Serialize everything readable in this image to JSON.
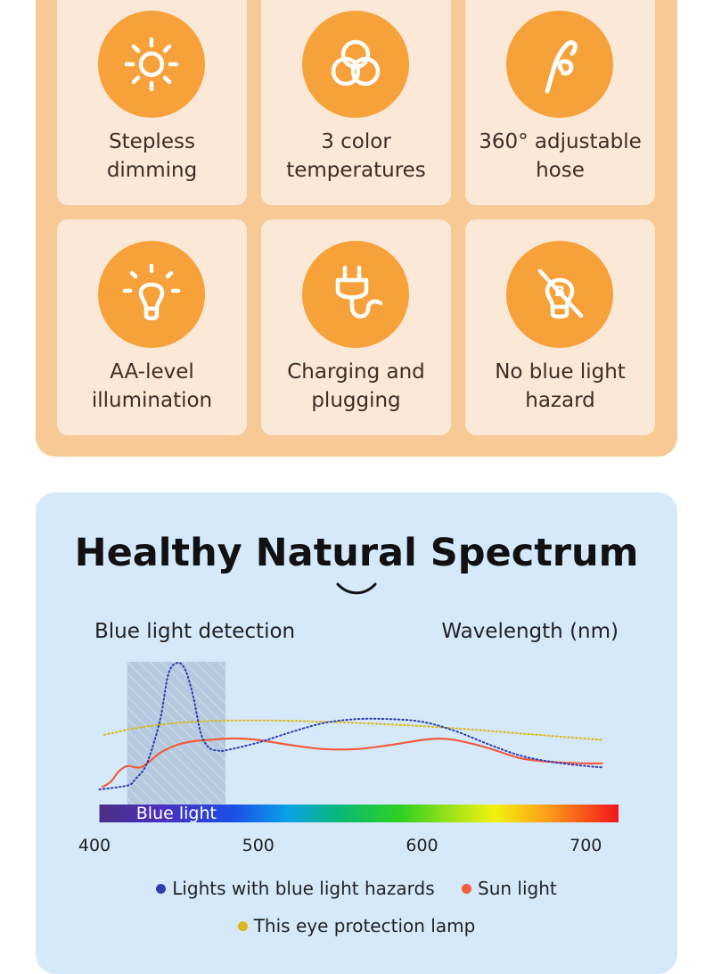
{
  "features": [
    {
      "icon": "sun-brightness-icon",
      "line1": "Stepless",
      "line2": "dimming"
    },
    {
      "icon": "color-circles-icon",
      "line1": "3 color",
      "line2": "temperatures"
    },
    {
      "icon": "gooseneck-hose-icon",
      "line1": "360° adjustable",
      "line2": "hose"
    },
    {
      "icon": "light-bulb-icon",
      "line1": "AA-level",
      "line2": "illumination"
    },
    {
      "icon": "power-plug-icon",
      "line1": "Charging and",
      "line2": "plugging"
    },
    {
      "icon": "no-blue-light-icon",
      "line1": "No blue light",
      "line2": "hazard"
    }
  ],
  "spectrum": {
    "title": "Healthy Natural Spectrum",
    "left_label": "Blue light detection",
    "right_label": "Wavelength (nm)",
    "band_label": "Blue light"
  },
  "colors": {
    "panel_orange": "#f6c995",
    "card_bg": "#fbe8d6",
    "icon_orange": "#f7a13a",
    "spectrum_bg": "#d6e9fb",
    "hazard_series": "#2f3fb0",
    "sun_series": "#f25c3b",
    "lamp_series": "#d8b81a"
  },
  "chart_data": {
    "type": "line",
    "title": "",
    "xlabel": "Wavelength (nm)",
    "ylabel": "",
    "xlim": [
      400,
      720
    ],
    "xticks": [
      400,
      500,
      600,
      700
    ],
    "ylim": [
      0,
      1
    ],
    "highlight_band": {
      "label": "Blue light",
      "x_range": [
        420,
        480
      ]
    },
    "series": [
      {
        "name": "Lights with blue light hazards",
        "color": "#2f3fb0",
        "style": "dotted",
        "x": [
          403,
          420,
          425,
          432,
          440,
          445,
          450,
          455,
          460,
          465,
          470,
          475,
          480,
          500,
          520,
          540,
          560,
          580,
          600,
          620,
          640,
          660,
          680,
          700,
          710
        ],
        "y": [
          0.02,
          0.05,
          0.1,
          0.22,
          0.55,
          0.9,
          0.99,
          0.95,
          0.75,
          0.45,
          0.34,
          0.32,
          0.32,
          0.38,
          0.46,
          0.53,
          0.56,
          0.56,
          0.54,
          0.47,
          0.37,
          0.28,
          0.23,
          0.2,
          0.19
        ]
      },
      {
        "name": "Sun light",
        "color": "#f25c3b",
        "style": "solid",
        "x": [
          405,
          410,
          415,
          420,
          425,
          430,
          440,
          450,
          460,
          470,
          480,
          490,
          500,
          520,
          540,
          560,
          580,
          600,
          610,
          620,
          640,
          660,
          680,
          700,
          710
        ],
        "y": [
          0.04,
          0.08,
          0.16,
          0.2,
          0.19,
          0.2,
          0.3,
          0.36,
          0.39,
          0.4,
          0.41,
          0.41,
          0.4,
          0.36,
          0.33,
          0.33,
          0.36,
          0.4,
          0.41,
          0.4,
          0.34,
          0.26,
          0.23,
          0.22,
          0.22
        ]
      },
      {
        "name": "This eye protection lamp",
        "color": "#d8b81a",
        "style": "dotted",
        "x": [
          406,
          430,
          460,
          500,
          540,
          580,
          620,
          660,
          690,
          710
        ],
        "y": [
          0.44,
          0.5,
          0.54,
          0.55,
          0.54,
          0.52,
          0.49,
          0.45,
          0.42,
          0.4
        ]
      }
    ]
  }
}
